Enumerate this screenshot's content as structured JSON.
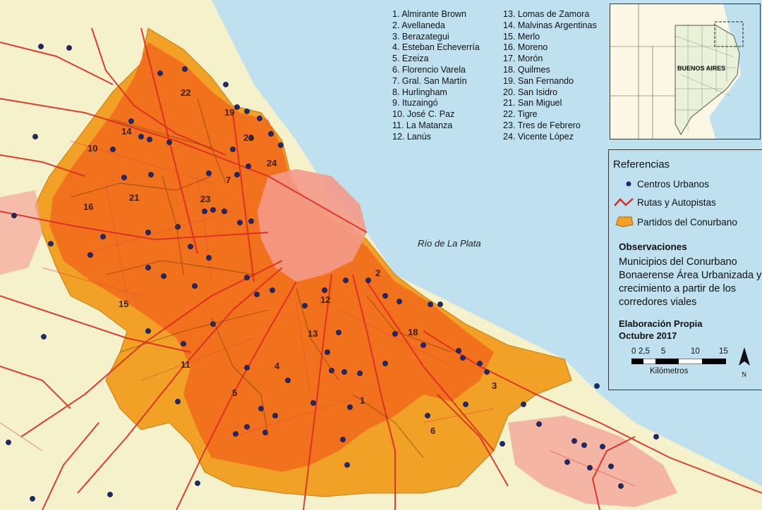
{
  "municipalities_col1": [
    "1. Almirante Brown",
    "2. Avellaneda",
    "3. Berazategui",
    "4. Esteban Echeverría",
    "5. Ezeiza",
    "6. Florencio Varela",
    "7. Gral. San Martín",
    "8. Hurlingham",
    "9. Ituzaingó",
    "10. José C. Paz",
    "11. La Matanza",
    "12. Lanús"
  ],
  "municipalities_col2": [
    "13. Lomas de Zamora",
    "14. Malvinas Argentinas",
    "15. Merlo",
    "16. Moreno",
    "17. Morón",
    "18. Quilmes",
    "19. San Fernando",
    "20. San Isidro",
    "21. San Miguel",
    "22. Tigre",
    "23. Tres de Febrero",
    "24. Vicente López"
  ],
  "inset": {
    "label": "BUENOS AIRES"
  },
  "legend": {
    "title": "Referencias",
    "items": [
      "Centros Urbanos",
      "Rutas y Autopistas",
      "Partidos del Conurbano"
    ],
    "observations_heading": "Observaciones",
    "observations_text": "Municipios del Conurbano Bonaerense Área Urbanizada y crecimiento a partir de los corredores viales",
    "credit_line1": "Elaboración Propia",
    "credit_line2": "Octubre 2017",
    "scale_ticks": [
      "0",
      "2,5",
      "5",
      "10",
      "15"
    ],
    "scale_unit": "Kilómetros",
    "north": "N"
  },
  "river_label": "Río de La Plata",
  "partido_numbers": [
    "22",
    "19",
    "14",
    "20",
    "10",
    "24",
    "7",
    "23",
    "16",
    "21",
    "2",
    "12",
    "15",
    "13",
    "18",
    "4",
    "11",
    "5",
    "1",
    "3",
    "6"
  ],
  "colors": {
    "water": "#bfe0ee",
    "land": "#f3f0c8",
    "conurbano": "#f0a028",
    "urban": "#f06a1e",
    "roads": "#e0302a",
    "centers": "#1f2a6e"
  }
}
